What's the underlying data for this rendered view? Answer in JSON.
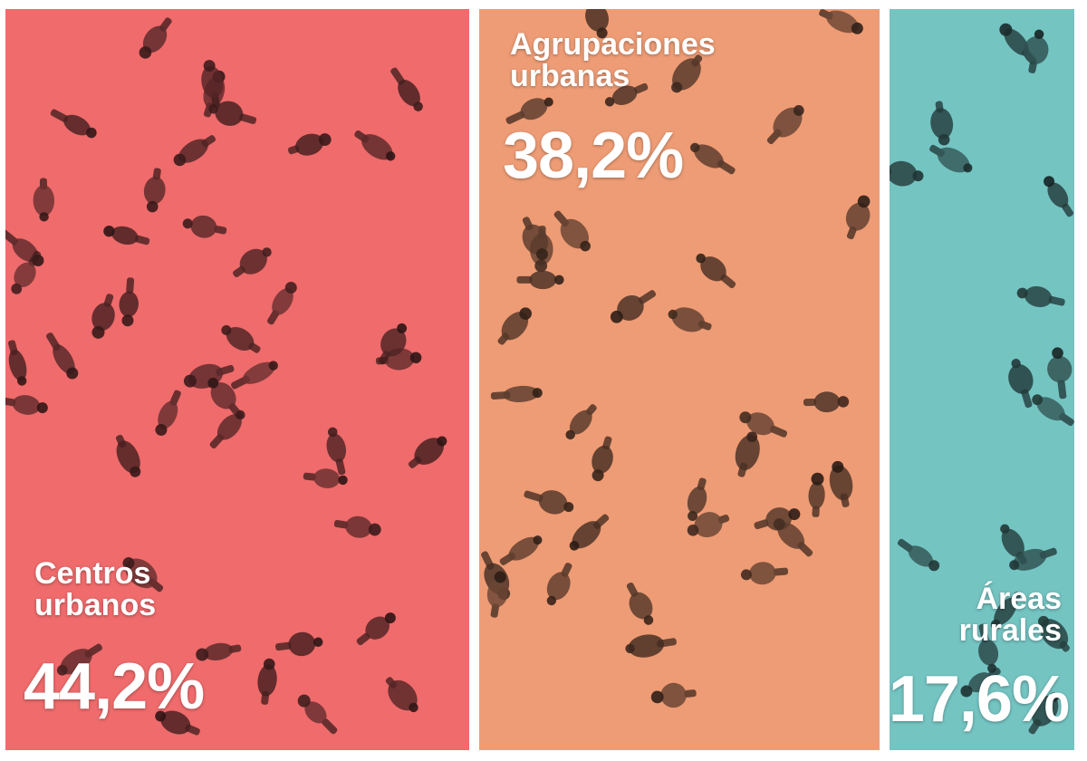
{
  "chart_data": {
    "type": "bar",
    "categories": [
      "Centros urbanos",
      "Agrupaciones urbanas",
      "Áreas rurales"
    ],
    "values": [
      44.2,
      38.2,
      17.6
    ],
    "value_labels": [
      "44,2%",
      "38,2%",
      "17,6%"
    ],
    "name_lines": [
      [
        "Centros",
        "urbanos"
      ],
      [
        "Agrupaciones",
        "urbanas"
      ],
      [
        "Áreas",
        "rurales"
      ]
    ],
    "colors": [
      "#ef6b6c",
      "#ee9c75",
      "#74c4c2"
    ],
    "title": "",
    "xlabel": "",
    "ylabel": "",
    "legend": "none",
    "grid": false
  }
}
